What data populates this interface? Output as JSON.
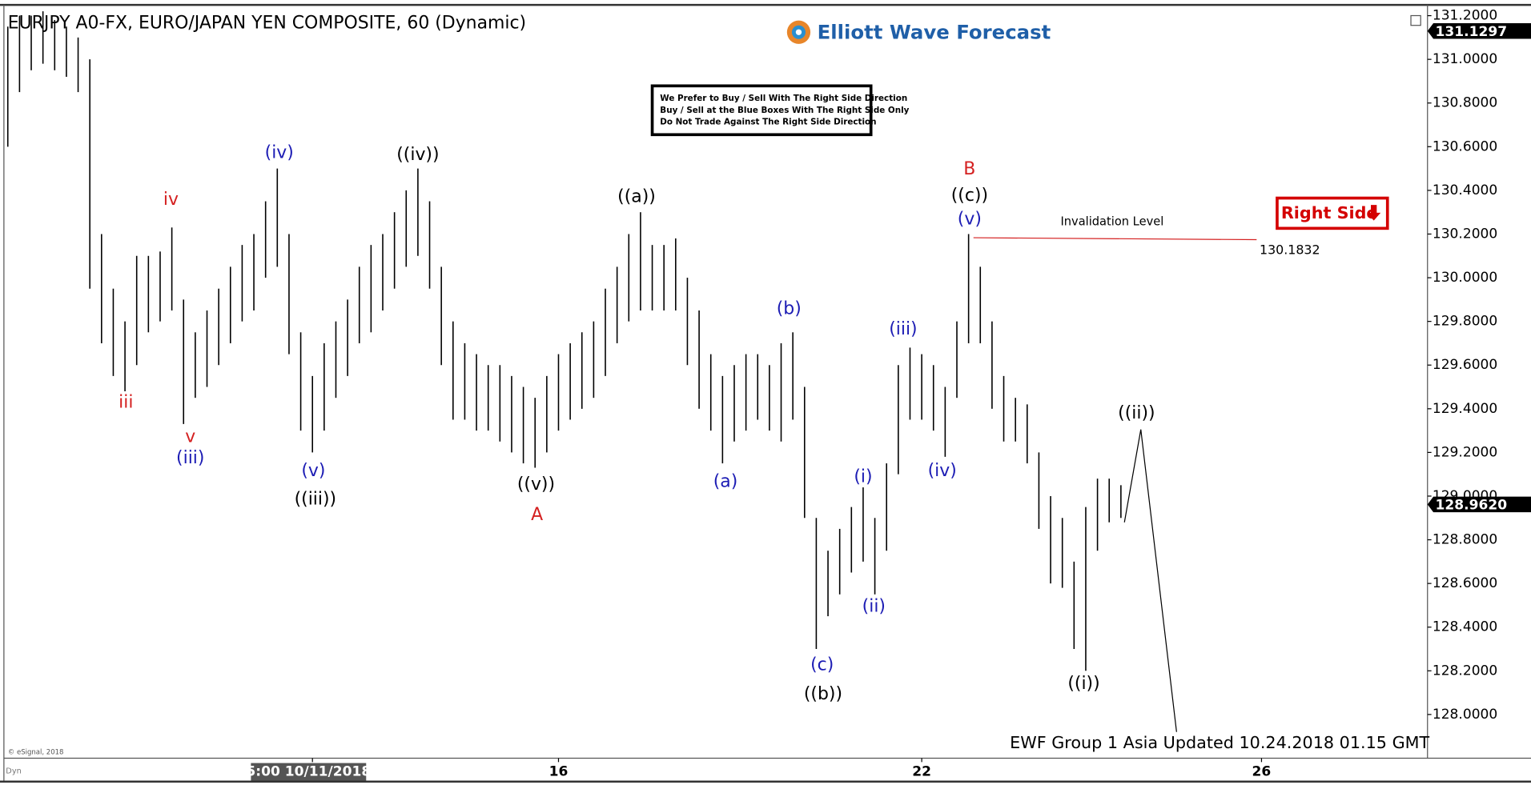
{
  "header": {
    "title": "EURJPY A0-FX, EURO/JAPAN YEN COMPOSITE, 60 (Dynamic)",
    "logo": "Elliott Wave Forecast",
    "notice": [
      "We Prefer to Buy / Sell With The Right Side Direction",
      "Buy / Sell at the Blue Boxes With The Right Side Only",
      "Do Not Trade Against The Right Side Direction"
    ],
    "badge": "Right Side"
  },
  "footer": {
    "update": "EWF Group 1 Asia Updated 10.24.2018 01.15 GMT",
    "copyright": "© eSignal, 2018",
    "mode": "Dyn"
  },
  "chart_data": {
    "type": "hlbar",
    "color": "#000000",
    "categories": [
      null,
      null,
      null,
      null,
      null,
      null,
      null,
      null,
      null,
      null,
      null,
      null,
      null,
      null,
      null,
      null,
      null,
      null,
      null,
      null,
      null,
      null,
      null,
      null,
      null,
      null,
      "5:00 10/11/2018",
      null,
      null,
      null,
      null,
      null,
      null,
      null,
      null,
      null,
      null,
      null,
      null,
      null,
      null,
      null,
      null,
      null,
      null,
      null,
      null,
      "16",
      null,
      null,
      null,
      null,
      null,
      null,
      null,
      null,
      null,
      null,
      null,
      null,
      null,
      null,
      null,
      null,
      null,
      null,
      null,
      null,
      null,
      null,
      null,
      null,
      null,
      null,
      null,
      null,
      null,
      null,
      "22",
      null,
      null,
      null,
      null,
      null,
      null,
      null,
      null,
      null,
      null,
      null,
      null,
      null,
      null,
      null,
      null,
      null,
      null,
      null,
      null,
      null,
      null,
      null,
      null,
      null,
      null,
      null,
      null,
      "26"
    ],
    "high": [
      131.15,
      131.2,
      131.2,
      131.22,
      131.18,
      131.15,
      131.1,
      131.0,
      130.2,
      129.95,
      129.8,
      130.1,
      130.1,
      130.12,
      130.23,
      129.9,
      129.75,
      129.85,
      129.95,
      130.05,
      130.15,
      130.2,
      130.35,
      130.5,
      130.2,
      129.75,
      129.55,
      129.7,
      129.8,
      129.9,
      130.05,
      130.15,
      130.2,
      130.3,
      130.4,
      130.5,
      130.35,
      130.05,
      129.8,
      129.7,
      129.65,
      129.6,
      129.6,
      129.55,
      129.5,
      129.45,
      129.55,
      129.65,
      129.7,
      129.75,
      129.8,
      129.95,
      130.05,
      130.2,
      130.3,
      130.15,
      130.15,
      130.18,
      130.0,
      129.85,
      129.65,
      129.55,
      129.6,
      129.65,
      129.65,
      129.6,
      129.7,
      129.75,
      129.5,
      128.9,
      128.75,
      128.85,
      128.95,
      129.04,
      128.9,
      129.15,
      129.6,
      129.68,
      129.65,
      129.6,
      129.5,
      129.8,
      130.2,
      130.05,
      129.8,
      129.55,
      129.45,
      129.42,
      129.2,
      129.0,
      128.9,
      128.7,
      128.95,
      129.08,
      129.08,
      129.05,
      null,
      null,
      null,
      null,
      null,
      null,
      null,
      null,
      null,
      null,
      null,
      null
    ],
    "low": [
      130.6,
      130.85,
      130.95,
      130.98,
      130.95,
      130.92,
      130.85,
      129.95,
      129.7,
      129.55,
      129.48,
      129.6,
      129.75,
      129.8,
      129.85,
      129.33,
      129.45,
      129.5,
      129.6,
      129.7,
      129.8,
      129.85,
      130.0,
      130.05,
      129.65,
      129.3,
      129.2,
      129.3,
      129.45,
      129.55,
      129.7,
      129.75,
      129.85,
      129.95,
      130.05,
      130.1,
      129.95,
      129.6,
      129.35,
      129.35,
      129.3,
      129.3,
      129.25,
      129.2,
      129.15,
      129.13,
      129.2,
      129.3,
      129.35,
      129.4,
      129.45,
      129.55,
      129.7,
      129.8,
      129.85,
      129.85,
      129.85,
      129.85,
      129.6,
      129.4,
      129.3,
      129.15,
      129.25,
      129.3,
      129.35,
      129.3,
      129.25,
      129.35,
      128.9,
      128.3,
      128.45,
      128.55,
      128.65,
      128.7,
      128.55,
      128.75,
      129.1,
      129.35,
      129.35,
      129.3,
      129.18,
      129.45,
      129.7,
      129.7,
      129.4,
      129.25,
      129.25,
      129.15,
      128.85,
      128.6,
      128.58,
      128.3,
      128.2,
      128.75,
      128.88,
      128.9,
      null,
      null,
      null,
      null,
      null,
      null,
      null,
      null,
      null,
      null,
      null,
      null
    ],
    "projection": {
      "x": [
        95.3,
        96.7,
        99.75
      ],
      "values": [
        128.88,
        129.305,
        127.92
      ]
    },
    "invalidation": {
      "label": "Invalidation Level",
      "value": 130.1832,
      "value_label": "130.1832"
    },
    "price_markers": [
      {
        "value": 131.1297,
        "label": "131.1297"
      },
      {
        "value": 128.962,
        "label": "128.9620"
      }
    ],
    "ylim": [
      127.8,
      131.236
    ],
    "yticks": [
      {
        "value": 128.0,
        "label": "128.0000"
      },
      {
        "value": 128.2,
        "label": "128.2000"
      },
      {
        "value": 128.4,
        "label": "128.4000"
      },
      {
        "value": 128.6,
        "label": "128.6000"
      },
      {
        "value": 128.8,
        "label": "128.8000"
      },
      {
        "value": 129.0,
        "label": "129.0000"
      },
      {
        "value": 129.2,
        "label": "129.2000"
      },
      {
        "value": 129.4,
        "label": "129.4000"
      },
      {
        "value": 129.6,
        "label": "129.6000"
      },
      {
        "value": 129.8,
        "label": "129.8000"
      },
      {
        "value": 130.0,
        "label": "130.0000"
      },
      {
        "value": 130.2,
        "label": "130.2000"
      },
      {
        "value": 130.4,
        "label": "130.4000"
      },
      {
        "value": 130.6,
        "label": "130.6000"
      },
      {
        "value": 130.8,
        "label": "130.8000"
      },
      {
        "value": 131.0,
        "label": "131.0000"
      },
      {
        "value": 131.2,
        "label": "131.2000"
      }
    ],
    "annotations": [
      {
        "text": "iv",
        "color": "#d42020"
      },
      {
        "text": "iii",
        "color": "#d42020"
      },
      {
        "text": "v",
        "color": "#d42020"
      },
      {
        "text": "(iii)",
        "color": "#1c1cb4"
      },
      {
        "text": "(iv)",
        "color": "#1c1cb4"
      },
      {
        "text": "((iv))",
        "color": "#000000"
      },
      {
        "text": "(v)",
        "color": "#1c1cb4"
      },
      {
        "text": "((iii))",
        "color": "#000000"
      },
      {
        "text": "((v))",
        "color": "#000000"
      },
      {
        "text": "A",
        "color": "#d42020"
      },
      {
        "text": "((a))",
        "color": "#000000"
      },
      {
        "text": "(a)",
        "color": "#1c1cb4"
      },
      {
        "text": "(b)",
        "color": "#1c1cb4"
      },
      {
        "text": "(c)",
        "color": "#1c1cb4"
      },
      {
        "text": "((b))",
        "color": "#000000"
      },
      {
        "text": "(i)",
        "color": "#1c1cb4"
      },
      {
        "text": "(ii)",
        "color": "#1c1cb4"
      },
      {
        "text": "(iii)",
        "color": "#1c1cb4"
      },
      {
        "text": "(iv)",
        "color": "#1c1cb4"
      },
      {
        "text": "(v)",
        "color": "#1c1cb4"
      },
      {
        "text": "((c))",
        "color": "#000000"
      },
      {
        "text": "B",
        "color": "#d42020"
      },
      {
        "text": "((i))",
        "color": "#000000"
      },
      {
        "text": "((ii))",
        "color": "#000000"
      }
    ]
  }
}
